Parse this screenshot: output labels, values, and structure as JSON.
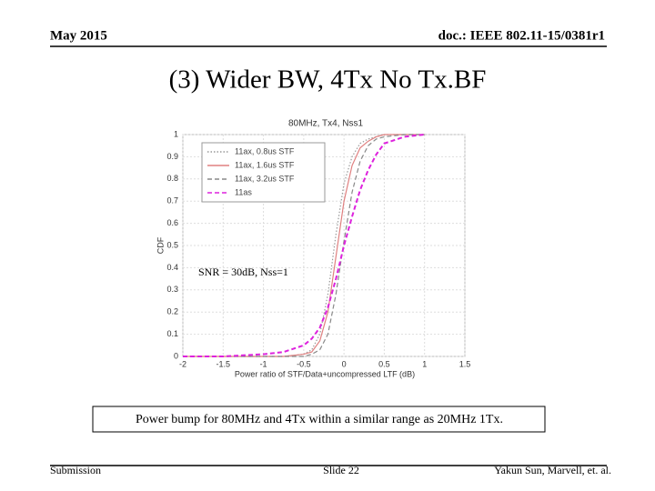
{
  "header": {
    "date": "May 2015",
    "doc": "doc.: IEEE 802.11-15/0381r1"
  },
  "title": "(3) Wider BW, 4Tx No Tx.BF",
  "chart_data": {
    "type": "line",
    "title": "80MHz, Tx4, Nss1",
    "x_label": "Power ratio of STF/Data+uncompressed LTF (dB)",
    "y_label": "CDF",
    "annotation": "SNR = 30dB, Nss=1",
    "x": [
      -2,
      -1.5,
      -1,
      -0.75,
      -0.5,
      -0.4,
      -0.3,
      -0.2,
      -0.1,
      0,
      0.1,
      0.2,
      0.3,
      0.4,
      0.5,
      0.75,
      1
    ],
    "series": [
      {
        "name": "11ax, 0.8us STF",
        "color": "#999999",
        "style": "dotted",
        "values": [
          0,
          0,
          0,
          0,
          0.01,
          0.03,
          0.1,
          0.28,
          0.55,
          0.78,
          0.9,
          0.96,
          0.98,
          0.99,
          1,
          1,
          1
        ]
      },
      {
        "name": "11ax, 1.6us STF",
        "color": "#e08080",
        "style": "solid",
        "values": [
          0,
          0,
          0,
          0,
          0.01,
          0.02,
          0.07,
          0.2,
          0.45,
          0.7,
          0.86,
          0.94,
          0.97,
          0.99,
          1,
          1,
          1
        ]
      },
      {
        "name": "11ax, 3.2us STF",
        "color": "#888888",
        "style": "dashed",
        "values": [
          0,
          0,
          0,
          0,
          0,
          0.01,
          0.03,
          0.1,
          0.28,
          0.52,
          0.74,
          0.88,
          0.95,
          0.98,
          0.99,
          1,
          1
        ]
      },
      {
        "name": "11as",
        "color": "#dd22dd",
        "style": "dashed",
        "values": [
          0,
          0,
          0.01,
          0.02,
          0.05,
          0.08,
          0.13,
          0.22,
          0.35,
          0.5,
          0.63,
          0.75,
          0.84,
          0.91,
          0.96,
          0.99,
          1
        ]
      }
    ],
    "xlim": [
      -2,
      1.5
    ],
    "xticks": [
      -2,
      -1.5,
      -1,
      -0.5,
      0,
      0.5,
      1,
      1.5
    ],
    "ylim": [
      0,
      1
    ],
    "yticks": [
      0,
      0.1,
      0.2,
      0.3,
      0.4,
      0.5,
      0.6,
      0.7,
      0.8,
      0.9,
      1
    ],
    "grid": true,
    "legend": "upper left"
  },
  "caption": "Power bump for 80MHz and 4Tx within a similar range as 20MHz 1Tx.",
  "footer": {
    "left": "Submission",
    "center": "Slide 22",
    "right": "Yakun Sun, Marvell, et. al."
  }
}
